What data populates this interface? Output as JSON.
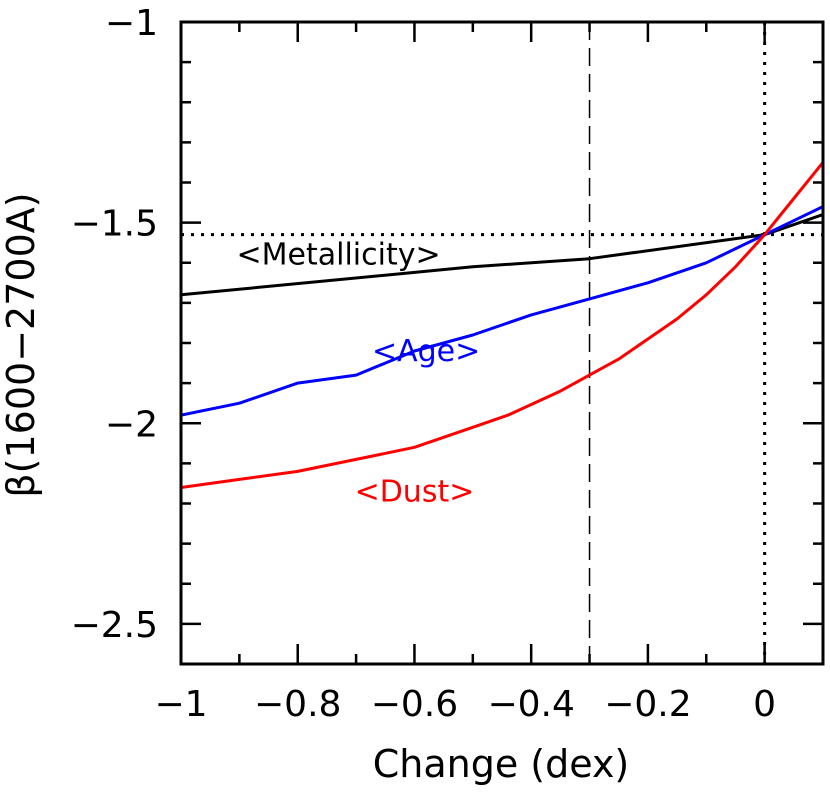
{
  "chart_data": {
    "type": "line",
    "xlabel": "Change (dex)",
    "ylabel": "β(1600−2700A)",
    "xlim": [
      -1,
      0.1
    ],
    "ylim": [
      -2.6,
      -1
    ],
    "x_ticks": [
      -1,
      -0.8,
      -0.6,
      -0.4,
      -0.2,
      0
    ],
    "x_tick_labels": [
      "−1",
      "−0.8",
      "−0.6",
      "−0.4",
      "−0.2",
      "0"
    ],
    "y_ticks": [
      -1,
      -1.5,
      -2,
      -2.5
    ],
    "y_tick_labels": [
      "−1",
      "−1.5",
      "−2",
      "−2.5"
    ],
    "reference_lines": {
      "horizontal_dotted_y": -1.53,
      "vertical_dotted_x": 0,
      "vertical_dashed_x": -0.3
    },
    "series": [
      {
        "name": "<Metallicity>",
        "color": "#000000",
        "x": [
          -1,
          -0.5,
          -0.3,
          0,
          0.1
        ],
        "y": [
          -1.68,
          -1.61,
          -1.59,
          -1.53,
          -1.48
        ]
      },
      {
        "name": "<Age>",
        "color": "#0000ff",
        "x": [
          -1,
          -0.9,
          -0.8,
          -0.7,
          -0.6,
          -0.5,
          -0.4,
          -0.3,
          -0.2,
          -0.1,
          0,
          0.1
        ],
        "y": [
          -1.98,
          -1.95,
          -1.9,
          -1.88,
          -1.82,
          -1.78,
          -1.73,
          -1.69,
          -1.65,
          -1.6,
          -1.53,
          -1.46
        ]
      },
      {
        "name": "<Dust>",
        "color": "#ff0000",
        "x": [
          -1,
          -0.9,
          -0.8,
          -0.7,
          -0.6,
          -0.5,
          -0.44,
          -0.35,
          -0.3,
          -0.25,
          -0.2,
          -0.15,
          -0.1,
          -0.05,
          0,
          0.05,
          0.1
        ],
        "y": [
          -2.16,
          -2.14,
          -2.12,
          -2.09,
          -2.06,
          -2.01,
          -1.98,
          -1.92,
          -1.88,
          -1.84,
          -1.79,
          -1.74,
          -1.68,
          -1.61,
          -1.53,
          -1.44,
          -1.35
        ]
      }
    ]
  }
}
